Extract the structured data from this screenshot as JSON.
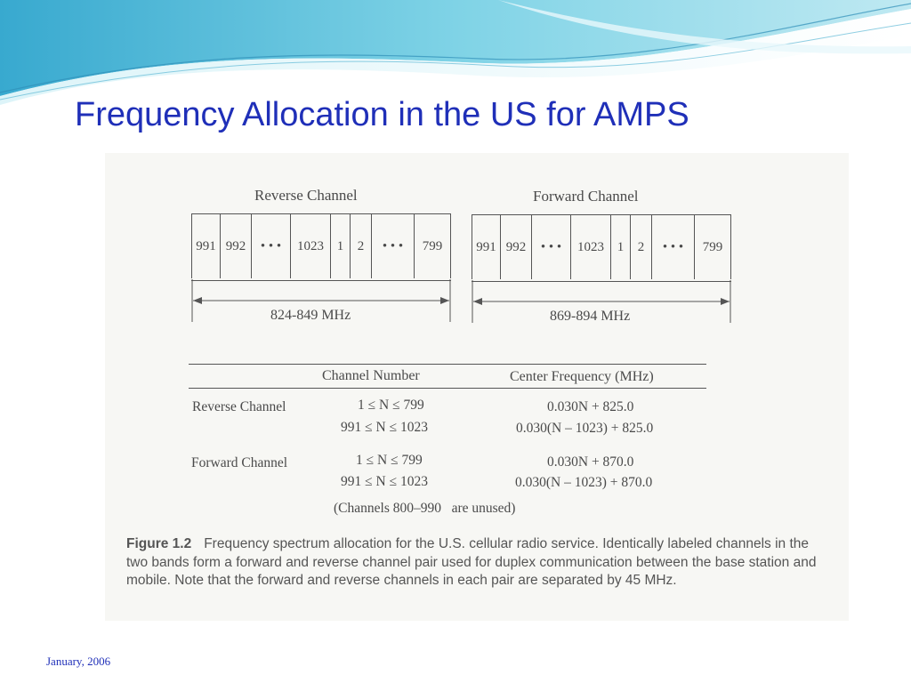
{
  "slide": {
    "title": "Frequency Allocation in the US for AMPS",
    "footer": "January, 2006"
  },
  "figure": {
    "reverse_band": {
      "title": "Reverse Channel",
      "cells": [
        "991",
        "992",
        "• • •",
        "1023",
        "1",
        "2",
        "• • •",
        "799"
      ],
      "range": "824-849 MHz"
    },
    "forward_band": {
      "title": "Forward Channel",
      "cells": [
        "991",
        "992",
        "• • •",
        "1023",
        "1",
        "2",
        "• • •",
        "799"
      ],
      "range": "869-894 MHz"
    },
    "table": {
      "headers": [
        "Channel Number",
        "Center Frequency (MHz)"
      ],
      "rows": [
        {
          "label": "Reverse Channel",
          "ranges": [
            "1 ≤ N ≤ 799",
            "991 ≤ N ≤ 1023"
          ],
          "freqs": [
            "0.030N + 825.0",
            "0.030(N – 1023) + 825.0"
          ]
        },
        {
          "label": "Forward Channel",
          "ranges": [
            "1 ≤ N ≤ 799",
            "991 ≤ N ≤ 1023"
          ],
          "freqs": [
            "0.030N + 870.0",
            "0.030(N – 1023) + 870.0"
          ]
        }
      ],
      "note": "(Channels 800–990   are unused)"
    },
    "caption": {
      "label": "Figure 1.2",
      "text": "Frequency spectrum allocation for the U.S. cellular radio service. Identically labeled channels in the two bands form a forward and reverse channel pair used for duplex communication between the base station and mobile. Note that the forward and reverse channels in each pair are separated by 45 MHz."
    }
  },
  "colors": {
    "title": "#1f2fb8",
    "wave_light": "#bfe9f2",
    "wave_mid": "#7fd3e6",
    "wave_dark": "#38a9cf"
  }
}
